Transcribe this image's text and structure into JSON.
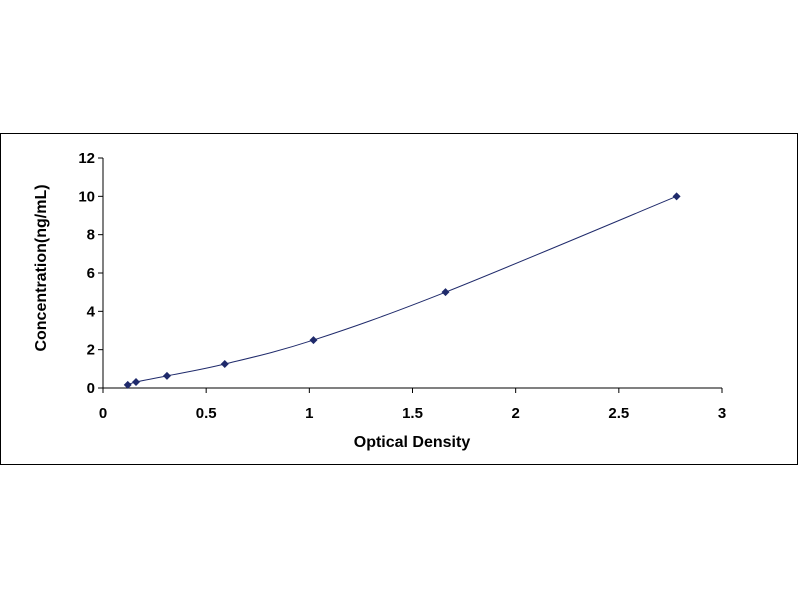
{
  "chart_data": {
    "type": "scatter",
    "title": "",
    "xlabel": "Optical Density",
    "ylabel": "Concentration(ng/mL)",
    "xlim": [
      0,
      3
    ],
    "ylim": [
      0,
      12
    ],
    "x_ticks": [
      "0",
      "0.5",
      "1",
      "1.5",
      "2",
      "2.5",
      "3"
    ],
    "y_ticks": [
      "0",
      "2",
      "4",
      "6",
      "8",
      "10",
      "12"
    ],
    "grid": false,
    "legend": "none",
    "series": [
      {
        "x": [
          0.12,
          0.16,
          0.31,
          0.59,
          1.02,
          1.66,
          2.78
        ],
        "y": [
          0.16,
          0.31,
          0.63,
          1.25,
          2.5,
          5.0,
          10.0
        ],
        "marker": "diamond",
        "color": "#1f2a6b",
        "line": "smooth"
      }
    ]
  }
}
